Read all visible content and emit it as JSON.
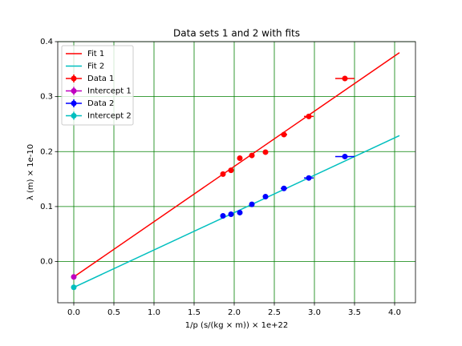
{
  "chart_data": {
    "type": "scatter",
    "title": "Data sets 1 and 2 with fits",
    "x_label": "1/p (s/(kg × m)) × 1e+22",
    "y_label": "λ (m) × 1e-10",
    "xlim": [
      -0.2,
      4.26
    ],
    "ylim": [
      -0.075,
      0.4
    ],
    "xticks": [
      {
        "value": 0,
        "label": "0.0"
      },
      0.5,
      {
        "value": 1,
        "label": "1.0"
      },
      1.5,
      {
        "value": 2,
        "label": "2.0"
      },
      2.5,
      {
        "value": 3,
        "label": "3.0"
      },
      3.5,
      {
        "value": 4,
        "label": "4.0"
      }
    ],
    "yticks": [
      {
        "value": 0,
        "label": "0.0"
      },
      0.1,
      0.2,
      0.3,
      0.4
    ],
    "grid": true,
    "grid_color": "#008000",
    "legend": "upper-left",
    "series": [
      {
        "name": "Fit 1",
        "kind": "line",
        "color": "#ff0000",
        "x": [
          0,
          4.06
        ],
        "values": [
          -0.028,
          0.38
        ]
      },
      {
        "name": "Fit 2",
        "kind": "line",
        "color": "#00bfbf",
        "x": [
          0,
          4.06
        ],
        "values": [
          -0.047,
          0.229
        ]
      },
      {
        "name": "Data 1",
        "kind": "errorbar",
        "color": "#ff0000",
        "x": [
          1.86,
          1.96,
          2.07,
          2.22,
          2.39,
          2.62,
          2.93,
          3.38
        ],
        "values": [
          0.159,
          0.166,
          0.188,
          0.193,
          0.199,
          0.231,
          0.264,
          0.333
        ],
        "xerr": [
          0.02,
          0.02,
          0.02,
          0.02,
          0.03,
          0.04,
          0.06,
          0.12
        ]
      },
      {
        "name": "Intercept 1",
        "kind": "errorbar",
        "color": "#bf00bf",
        "x": [
          0
        ],
        "values": [
          -0.028
        ],
        "xerr": [
          0
        ]
      },
      {
        "name": "Data 2",
        "kind": "errorbar",
        "color": "#0000ff",
        "x": [
          1.86,
          1.96,
          2.07,
          2.22,
          2.39,
          2.62,
          2.93,
          3.38
        ],
        "values": [
          0.083,
          0.086,
          0.089,
          0.104,
          0.118,
          0.133,
          0.152,
          0.191
        ],
        "xerr": [
          0.02,
          0.02,
          0.02,
          0.02,
          0.03,
          0.04,
          0.06,
          0.12
        ]
      },
      {
        "name": "Intercept 2",
        "kind": "errorbar",
        "color": "#00bfbf",
        "x": [
          0
        ],
        "values": [
          -0.047
        ],
        "xerr": [
          0
        ]
      }
    ]
  }
}
